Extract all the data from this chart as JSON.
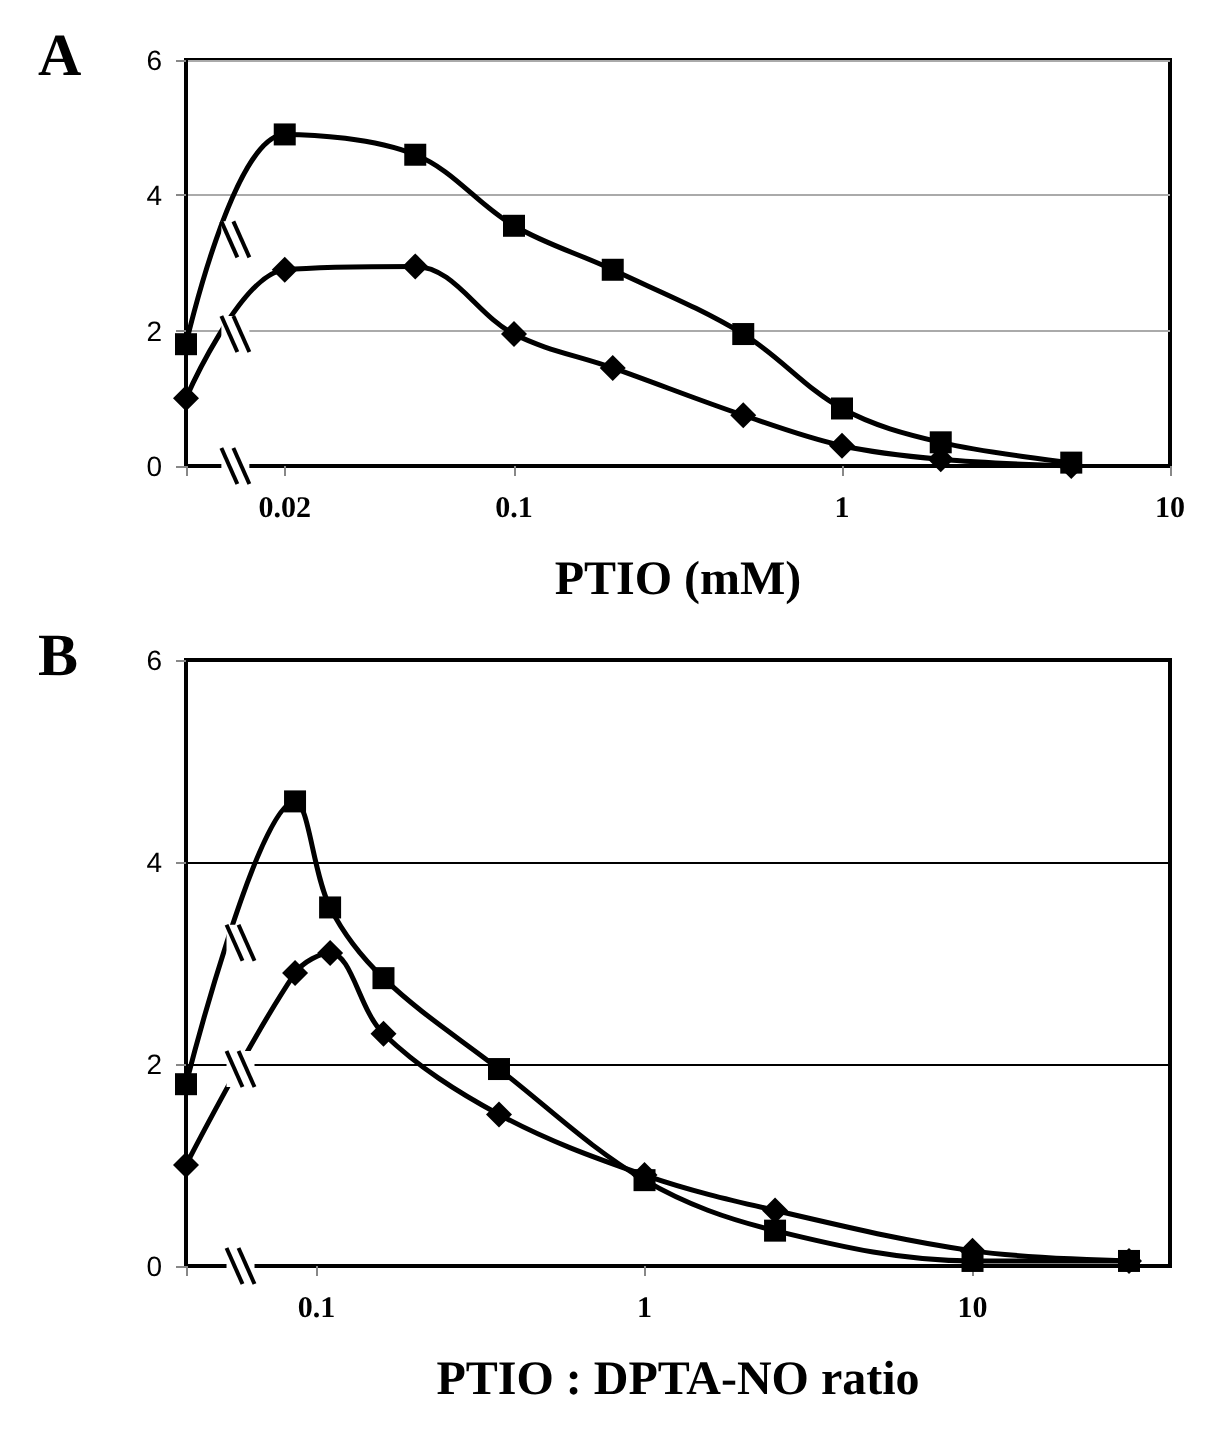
{
  "chart_data": [
    {
      "type": "line",
      "title": "A",
      "xlabel": "PTIO (mM)",
      "log": "x",
      "xlim": [
        0.01,
        10
      ],
      "xticks": [
        0.02,
        0.1,
        1,
        10
      ],
      "ylim": [
        0,
        6
      ],
      "yticks": [
        0,
        2,
        4,
        6
      ],
      "grid": "y",
      "line_style": "solid",
      "x": [
        0.01,
        0.02,
        0.05,
        0.1,
        0.2,
        0.5,
        1,
        2,
        5
      ],
      "series": [
        {
          "color": "#000000",
          "marker": "square",
          "values": [
            1.8,
            4.9,
            4.6,
            3.55,
            2.9,
            1.95,
            0.85,
            0.35,
            0.05
          ]
        },
        {
          "color": "#000000",
          "marker": "diamond",
          "values": [
            1.0,
            2.9,
            2.95,
            1.95,
            1.45,
            0.75,
            0.3,
            0.1,
            0.0
          ]
        }
      ]
    },
    {
      "type": "line",
      "title": "B",
      "xlabel": "PTIO : DPTA-NO ratio",
      "log": "x",
      "xlim": [
        0.04,
        40
      ],
      "xticks": [
        0.1,
        1,
        10
      ],
      "ylim": [
        0,
        6
      ],
      "yticks": [
        0,
        2,
        4,
        6
      ],
      "grid": "y",
      "line_style": "solid",
      "x": [
        0.04,
        0.086,
        0.11,
        0.16,
        0.36,
        1,
        2.5,
        10,
        30
      ],
      "series": [
        {
          "color": "#000000",
          "marker": "square",
          "values": [
            1.8,
            4.6,
            3.55,
            2.85,
            1.95,
            0.85,
            0.35,
            0.05,
            0.05
          ]
        },
        {
          "color": "#000000",
          "marker": "diamond",
          "values": [
            1.0,
            2.9,
            3.1,
            2.3,
            1.5,
            0.9,
            0.55,
            0.15,
            0.05
          ]
        }
      ]
    }
  ]
}
